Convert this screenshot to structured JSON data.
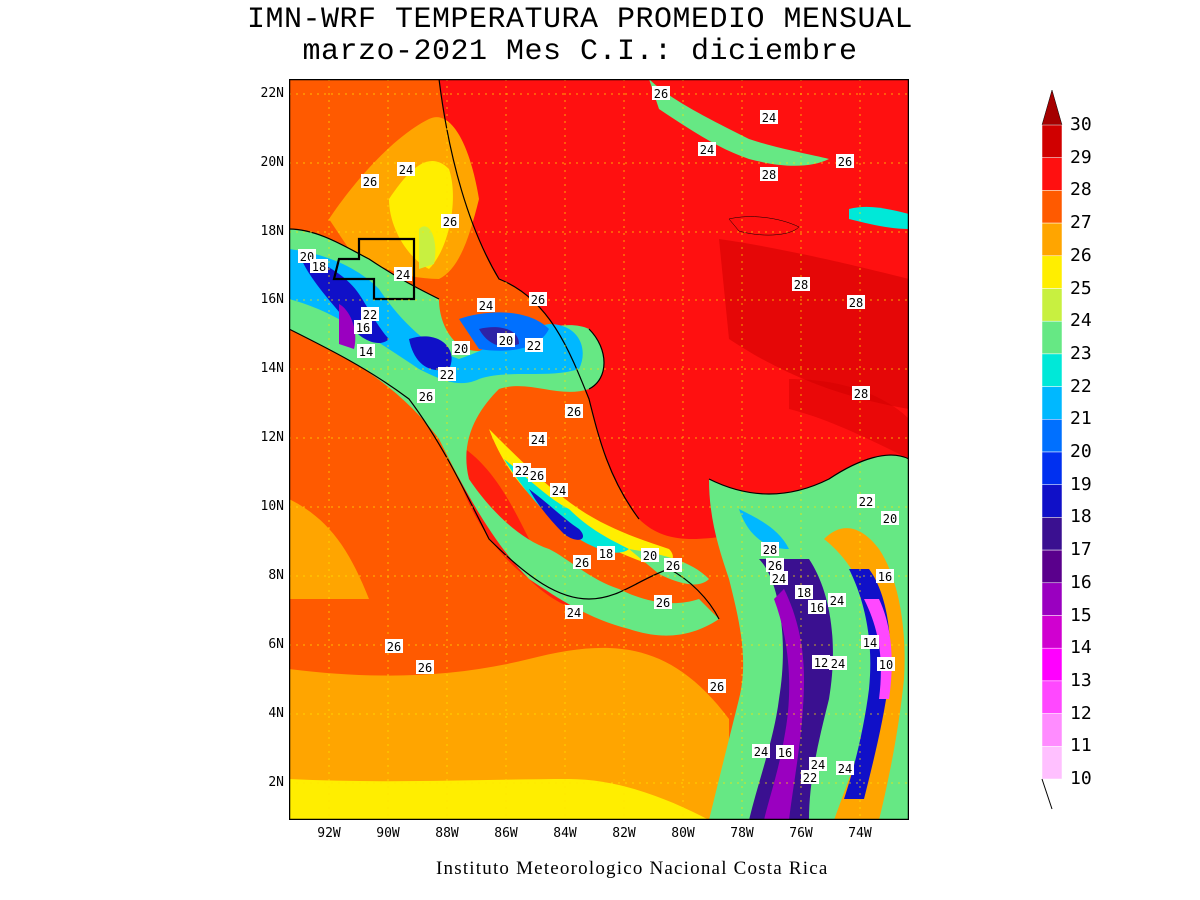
{
  "title_line1": "IMN-WRF  TEMPERATURA PROMEDIO MENSUAL",
  "title_line2": "marzo-2021 Mes C.I.: diciembre",
  "credit": "Instituto Meteorologico Nacional Costa Rica",
  "lat_ticks": [
    "22N",
    "20N",
    "18N",
    "16N",
    "14N",
    "12N",
    "10N",
    "8N",
    "6N",
    "4N",
    "2N"
  ],
  "lon_ticks": [
    "92W",
    "90W",
    "88W",
    "86W",
    "84W",
    "82W",
    "80W",
    "78W",
    "76W",
    "74W"
  ],
  "colorbar": {
    "levels": [
      "30",
      "29",
      "28",
      "27",
      "26",
      "25",
      "24",
      "23",
      "22",
      "21",
      "20",
      "19",
      "18",
      "17",
      "16",
      "15",
      "14",
      "13",
      "12",
      "11",
      "10"
    ],
    "colors": [
      "#a50000",
      "#d00000",
      "#ff1010",
      "#ff5a00",
      "#ffa500",
      "#ffee00",
      "#c8f040",
      "#66e884",
      "#00e8d8",
      "#00b8ff",
      "#0070ff",
      "#0030f0",
      "#1010c8",
      "#3a1090",
      "#5a008c",
      "#9a00c0",
      "#d000d0",
      "#ff00ff",
      "#ff48ff",
      "#ff8cff",
      "#ffc0ff"
    ]
  },
  "contour_labels": [
    {
      "text": "26"
    },
    {
      "text": "24"
    },
    {
      "text": "26"
    },
    {
      "text": "24"
    },
    {
      "text": "26"
    },
    {
      "text": "24"
    },
    {
      "text": "28"
    },
    {
      "text": "26"
    },
    {
      "text": "20"
    },
    {
      "text": "18"
    },
    {
      "text": "24"
    },
    {
      "text": "28"
    },
    {
      "text": "28"
    },
    {
      "text": "24"
    },
    {
      "text": "26"
    },
    {
      "text": "22"
    },
    {
      "text": "16"
    },
    {
      "text": "14"
    },
    {
      "text": "20"
    },
    {
      "text": "20"
    },
    {
      "text": "22"
    },
    {
      "text": "22"
    },
    {
      "text": "26"
    },
    {
      "text": "28"
    },
    {
      "text": "26"
    },
    {
      "text": "24"
    },
    {
      "text": "22"
    },
    {
      "text": "26"
    },
    {
      "text": "24"
    },
    {
      "text": "22"
    },
    {
      "text": "20"
    },
    {
      "text": "18"
    },
    {
      "text": "20"
    },
    {
      "text": "26"
    },
    {
      "text": "26"
    },
    {
      "text": "28"
    },
    {
      "text": "26"
    },
    {
      "text": "24"
    },
    {
      "text": "16"
    },
    {
      "text": "18"
    },
    {
      "text": "16"
    },
    {
      "text": "24"
    },
    {
      "text": "24"
    },
    {
      "text": "26"
    },
    {
      "text": "14"
    },
    {
      "text": "12"
    },
    {
      "text": "24"
    },
    {
      "text": "10"
    },
    {
      "text": "26"
    },
    {
      "text": "26"
    },
    {
      "text": "26"
    },
    {
      "text": "24"
    },
    {
      "text": "16"
    },
    {
      "text": "24"
    },
    {
      "text": "22"
    },
    {
      "text": "24"
    }
  ]
}
